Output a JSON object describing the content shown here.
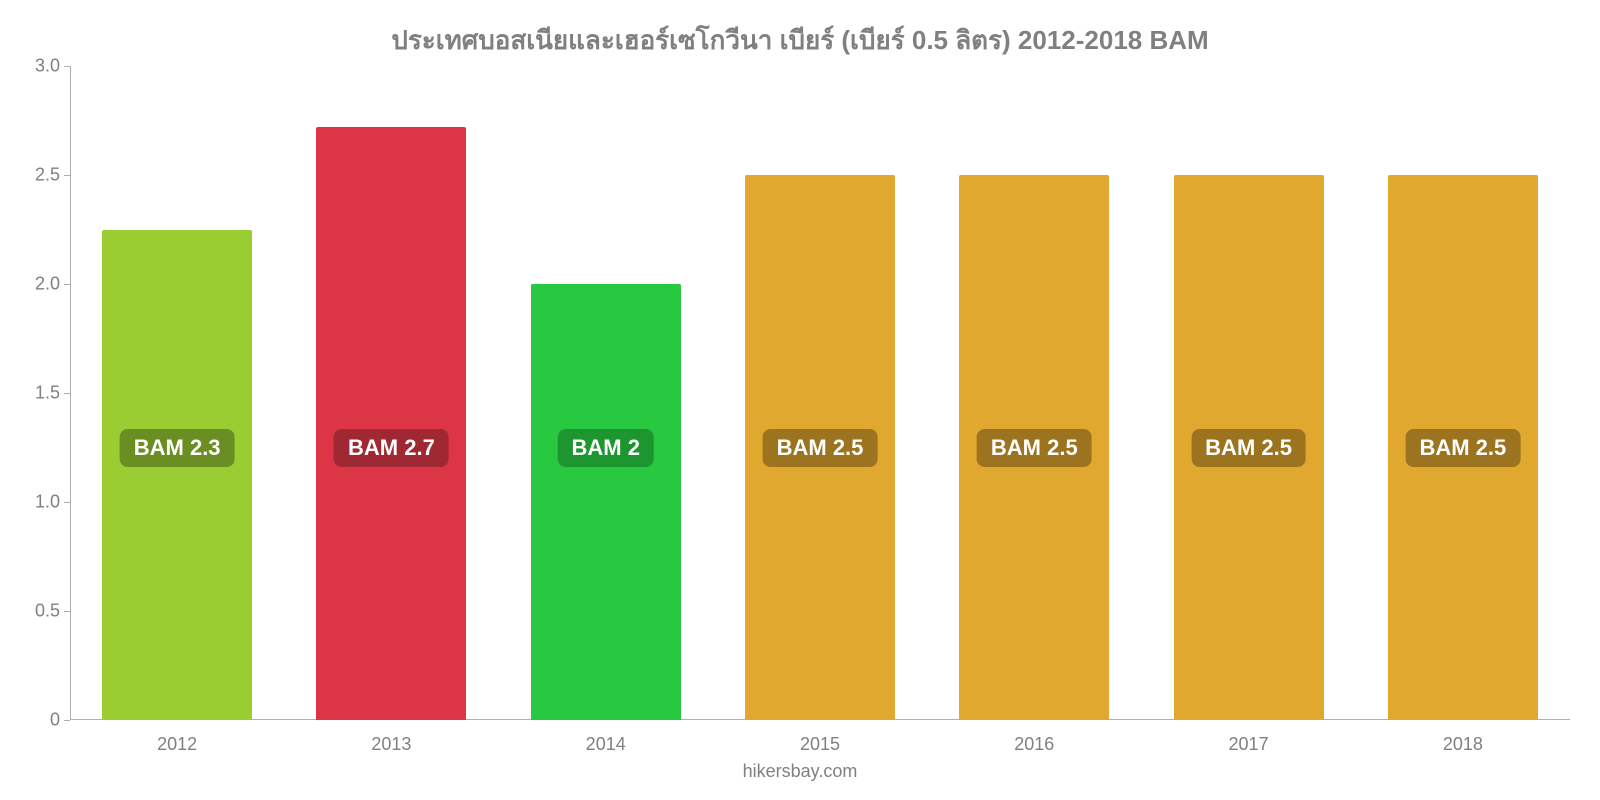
{
  "chart": {
    "type": "bar",
    "title": "ประเทศบอสเนียและเฮอร์เซโกวีนา เบียร์ (เบียร์ 0.5 ลิตร) 2012-2018 BAM",
    "title_color": "#808080",
    "title_fontsize": 26,
    "title_fontweight": 700,
    "background_color": "#ffffff",
    "axis_color": "#b0b0b0",
    "tick_label_color": "#808080",
    "x_tick_fontsize": 18,
    "y_tick_fontsize": 18,
    "ylim": [
      0,
      3.0
    ],
    "y_ticks": [
      0,
      0.5,
      1.0,
      1.5,
      2.0,
      2.5,
      3.0
    ],
    "y_tick_labels": [
      "0",
      "0.5",
      "1.0",
      "1.5",
      "2.0",
      "2.5",
      "3.0"
    ],
    "categories": [
      "2012",
      "2013",
      "2014",
      "2015",
      "2016",
      "2017",
      "2018"
    ],
    "values": [
      2.25,
      2.72,
      2.0,
      2.5,
      2.5,
      2.5,
      2.5
    ],
    "value_labels": [
      "BAM 2.3",
      "BAM 2.7",
      "BAM 2",
      "BAM 2.5",
      "BAM 2.5",
      "BAM 2.5",
      "BAM 2.5"
    ],
    "bar_colors": [
      "#9acd32",
      "#dc3545",
      "#28c840",
      "#e0a82e",
      "#e0a82e",
      "#e0a82e",
      "#e0a82e"
    ],
    "value_label_bg": [
      "#6b8e23",
      "#a02833",
      "#1e9630",
      "#9c7420",
      "#9c7420",
      "#9c7420",
      "#9c7420"
    ],
    "value_label_color": "#ffffff",
    "value_label_fontsize": 22,
    "value_label_y_value": 1.25,
    "bar_width_ratio": 0.7,
    "attribution": "hikersbay.com",
    "attribution_color": "#808080",
    "attribution_fontsize": 18
  }
}
